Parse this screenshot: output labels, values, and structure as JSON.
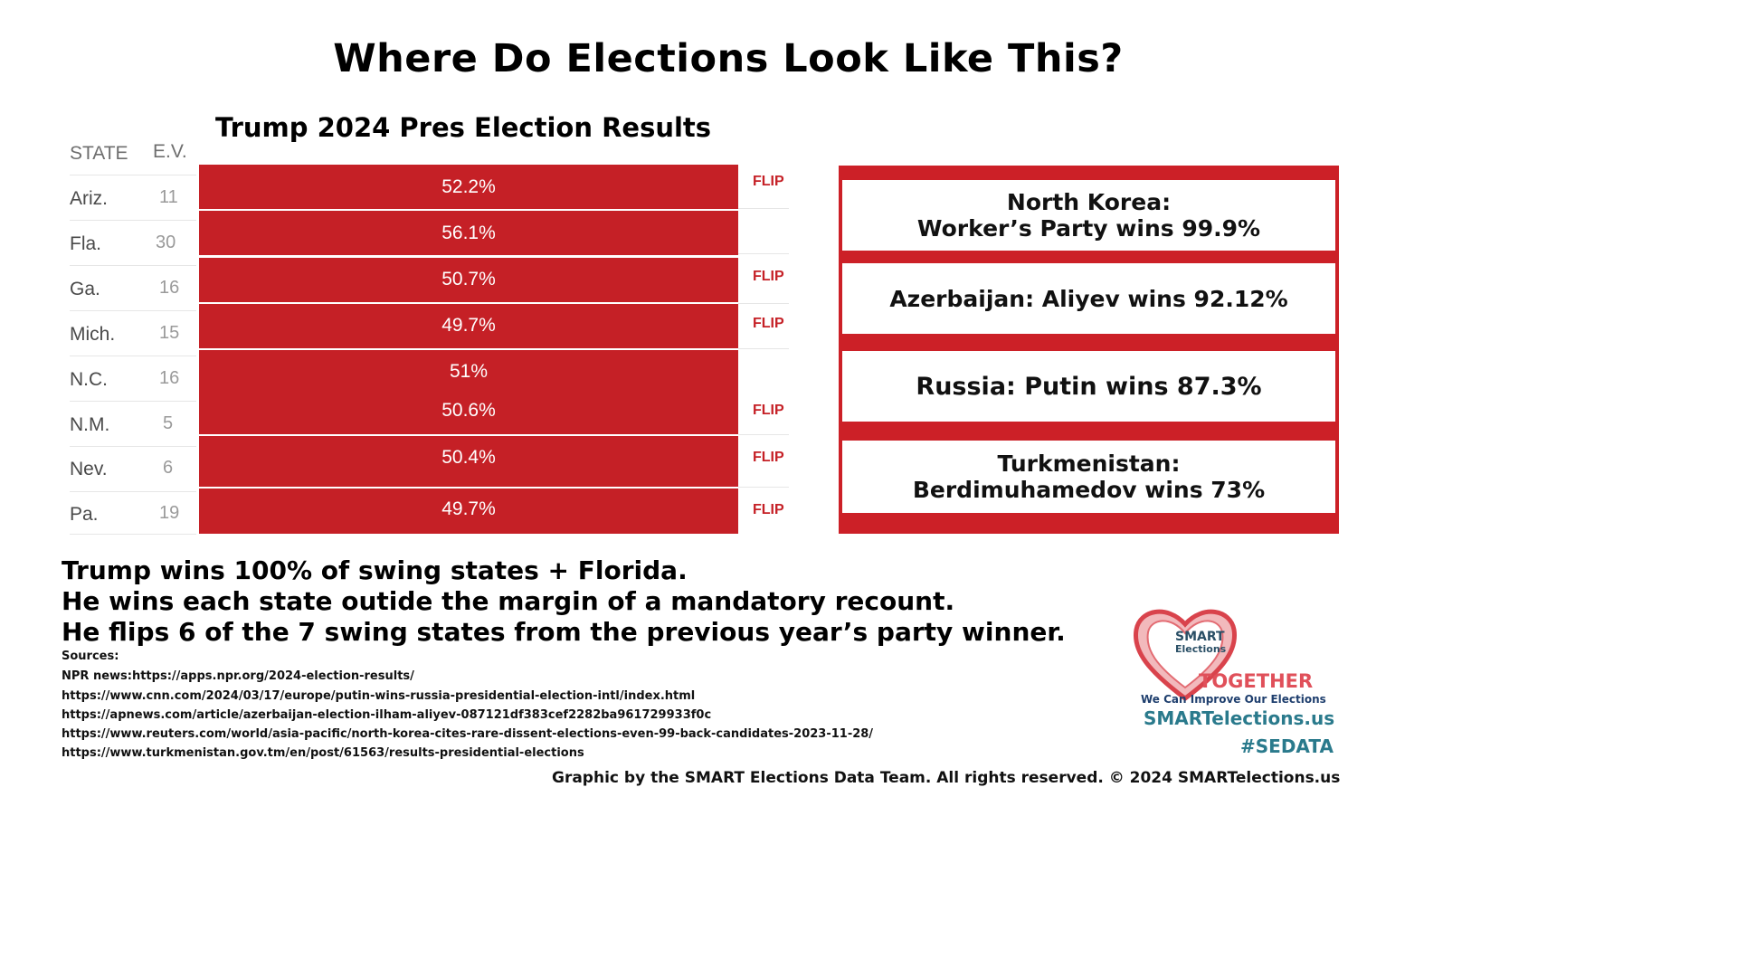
{
  "main_title": "Where Do Elections Look Like This?",
  "table_title": "Trump 2024 Pres Election Results",
  "table": {
    "headers": {
      "state": "STATE",
      "ev": "E.V."
    },
    "rows": [
      {
        "state": "Ariz.",
        "ev": "11",
        "pct": "52.2%",
        "flip": "FLIP"
      },
      {
        "state": "Fla.",
        "ev": "30",
        "pct": "56.1%",
        "flip": ""
      },
      {
        "state": "Ga.",
        "ev": "16",
        "pct": "50.7%",
        "flip": "FLIP"
      },
      {
        "state": "Mich.",
        "ev": "15",
        "pct": "49.7%",
        "flip": "FLIP"
      },
      {
        "state": "N.C.",
        "ev": "16",
        "pct": "51%",
        "flip": ""
      },
      {
        "state": "N.M.",
        "ev": "5",
        "pct": "50.6%",
        "flip": "FLIP"
      },
      {
        "state": "Nev.",
        "ev": "6",
        "pct": "50.4%",
        "flip": "FLIP"
      },
      {
        "state": "Pa.",
        "ev": "19",
        "pct": "49.7%",
        "flip": "FLIP"
      }
    ]
  },
  "comparisons": [
    {
      "line1": "North Korea:",
      "line2": "Worker’s Party wins 99.9%"
    },
    {
      "line1": "Azerbaijan: Aliyev wins 92.12%",
      "line2": ""
    },
    {
      "line1": "Russia: Putin wins 87.3%",
      "line2": ""
    },
    {
      "line1": "Turkmenistan:",
      "line2": "Berdimuhamedov wins 73%"
    }
  ],
  "summary": [
    "Trump wins 100% of swing states + Florida.",
    "He wins each state outide the margin of a mandatory recount.",
    "He flips 6 of the 7 swing states from the previous year’s party winner."
  ],
  "sources": {
    "label": "Sources:",
    "items": [
      "NPR news:https://apps.npr.org/2024-election-results/",
      "https://www.cnn.com/2024/03/17/europe/putin-wins-russia-presidential-election-intl/index.html",
      "https://apnews.com/article/azerbaijan-election-ilham-aliyev-087121df383cef2282ba961729933f0c",
      "https://www.reuters.com/world/asia-pacific/north-korea-cites-rare-dissent-elections-even-99-back-candidates-2023-11-28/",
      "https://www.turkmenistan.gov.tm/en/post/61563/results-presidential-elections"
    ]
  },
  "logo": {
    "name_top": "SMART",
    "name_bottom": "Elections",
    "together": "TOGETHER",
    "tagline": "We Can Improve Our Elections",
    "website": "SMARTelections.us",
    "hashtag": "#SEDATA"
  },
  "footer": "Graphic by the SMART Elections Data Team. All rights reserved. © 2024 SMARTelections.us",
  "colors": {
    "red": "#c52026",
    "panel_red": "#cc2027",
    "teal": "#2a7a8c",
    "logo_red": "#e0505a"
  }
}
